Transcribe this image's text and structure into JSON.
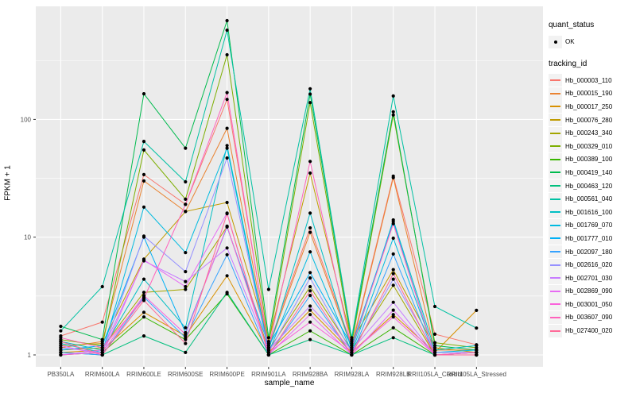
{
  "chart_data": {
    "type": "line",
    "xlabel": "sample_name",
    "ylabel": "FPKM + 1",
    "y_scale": "log10",
    "y_ticks": [
      1,
      10,
      100
    ],
    "y_minor_ticks": [
      3.162,
      31.62,
      316.2
    ],
    "ylim": [
      0.8,
      900
    ],
    "grid": true,
    "panel_bg": "#EBEBEB",
    "grid_color": "#FFFFFF",
    "tick_color": "#333333",
    "tick_label_color": "#4D4D4D",
    "point_color": "#000000",
    "categories": [
      "PB350LA",
      "RRIM600LA",
      "RRIM600LE",
      "RRIM600SE",
      "RRIM600PE",
      "RRIM901LA",
      "RRIM928BA",
      "RRIM928LA",
      "RRIM928LB",
      "RRII105LA_Control",
      "RRII105LA_Stressed"
    ],
    "series": [
      {
        "name": "Hb_000003_110",
        "color": "#F8766D",
        "values": [
          1.45,
          1.9,
          34,
          19,
          148,
          1.2,
          12,
          1.2,
          33,
          1.5,
          1.22
        ]
      },
      {
        "name": "Hb_000015_190",
        "color": "#EA8331",
        "values": [
          1.15,
          1.3,
          30,
          16.5,
          84,
          1.15,
          11,
          1.15,
          32,
          1.1,
          1.1
        ]
      },
      {
        "name": "Hb_000017_250",
        "color": "#D89000",
        "values": [
          1.05,
          1.1,
          2.3,
          1.45,
          4.7,
          1.05,
          2.4,
          1.05,
          2.2,
          1.05,
          2.39
        ]
      },
      {
        "name": "Hb_000076_280",
        "color": "#C09B00",
        "values": [
          1.2,
          1.25,
          6.5,
          16.5,
          19.7,
          1.3,
          35,
          1.3,
          5.3,
          1.15,
          1.05
        ]
      },
      {
        "name": "Hb_000243_340",
        "color": "#A3A500",
        "values": [
          1.1,
          1.15,
          3.4,
          3.6,
          12.3,
          1.1,
          3.8,
          1.1,
          3.9,
          1.0,
          1.05
        ]
      },
      {
        "name": "Hb_000329_010",
        "color": "#7CAE00",
        "values": [
          1.35,
          1.2,
          55,
          21,
          354,
          1.25,
          139,
          1.25,
          109,
          1.27,
          1.15
        ]
      },
      {
        "name": "Hb_000389_100",
        "color": "#39B600",
        "values": [
          1.0,
          1.05,
          2.1,
          1.35,
          3.3,
          1.0,
          1.6,
          1.0,
          1.7,
          1.0,
          1.0
        ]
      },
      {
        "name": "Hb_000419_140",
        "color": "#00BB4E",
        "values": [
          1.75,
          1.35,
          165,
          57,
          690,
          1.4,
          164,
          1.35,
          116,
          1.2,
          1.1
        ]
      },
      {
        "name": "Hb_000463_120",
        "color": "#00BF7D",
        "values": [
          1.05,
          1.0,
          1.45,
          1.05,
          3.4,
          1.0,
          1.35,
          1.0,
          1.4,
          1.0,
          1.0
        ]
      },
      {
        "name": "Hb_000561_040",
        "color": "#00C1A3",
        "values": [
          1.6,
          3.8,
          65,
          29.5,
          573,
          3.6,
          182,
          1.4,
          158,
          2.58,
          1.69
        ]
      },
      {
        "name": "Hb_001616_100",
        "color": "#00BFC4",
        "values": [
          1.3,
          1.1,
          4.4,
          1.7,
          60,
          1.1,
          16,
          1.1,
          14,
          1.1,
          1.2
        ]
      },
      {
        "name": "Hb_001769_070",
        "color": "#00BAE0",
        "values": [
          1.25,
          1.05,
          18,
          7.4,
          57,
          1.05,
          7.5,
          1.05,
          9.8,
          1.05,
          1.1
        ]
      },
      {
        "name": "Hb_001777_010",
        "color": "#00B0F6",
        "values": [
          1.1,
          1.2,
          10,
          1.55,
          12.2,
          1.2,
          5.0,
          1.2,
          13.5,
          1.0,
          1.05
        ]
      },
      {
        "name": "Hb_002097_180",
        "color": "#35A2FF",
        "values": [
          1.05,
          1.0,
          3.1,
          1.4,
          7.1,
          1.0,
          3.2,
          1.0,
          7.2,
          1.0,
          1.0
        ]
      },
      {
        "name": "Hb_002616_020",
        "color": "#9590FF",
        "values": [
          1.15,
          1.05,
          10.2,
          5.1,
          47,
          1.05,
          4.5,
          1.05,
          4.4,
          1.05,
          1.05
        ]
      },
      {
        "name": "Hb_002701_030",
        "color": "#C77CFF",
        "values": [
          1.0,
          1.1,
          6.3,
          4.2,
          8.1,
          1.1,
          2.6,
          1.1,
          2.8,
          1.0,
          1.0
        ]
      },
      {
        "name": "Hb_002869_090",
        "color": "#E76BF3",
        "values": [
          1.2,
          1.0,
          6.4,
          3.8,
          16,
          1.0,
          2.2,
          1.0,
          2.4,
          1.0,
          1.05
        ]
      },
      {
        "name": "Hb_003001_050",
        "color": "#FA62DB",
        "values": [
          1.0,
          1.05,
          3.2,
          1.5,
          12.4,
          1.05,
          1.9,
          1.05,
          2.1,
          1.0,
          1.0
        ]
      },
      {
        "name": "Hb_003607_090",
        "color": "#FF62BC",
        "values": [
          1.4,
          1.15,
          3.0,
          19,
          169,
          1.15,
          44,
          1.15,
          13,
          1.0,
          1.05
        ]
      },
      {
        "name": "Hb_027400_020",
        "color": "#FF6A98",
        "values": [
          1.3,
          1.0,
          2.9,
          1.25,
          15.8,
          1.0,
          3.5,
          1.0,
          4.9,
          1.0,
          1.0
        ]
      }
    ]
  },
  "legend": {
    "quant_status": {
      "title": "quant_status",
      "items": [
        {
          "label": "OK",
          "symbol": "point"
        }
      ]
    },
    "tracking_id": {
      "title": "tracking_id"
    }
  }
}
